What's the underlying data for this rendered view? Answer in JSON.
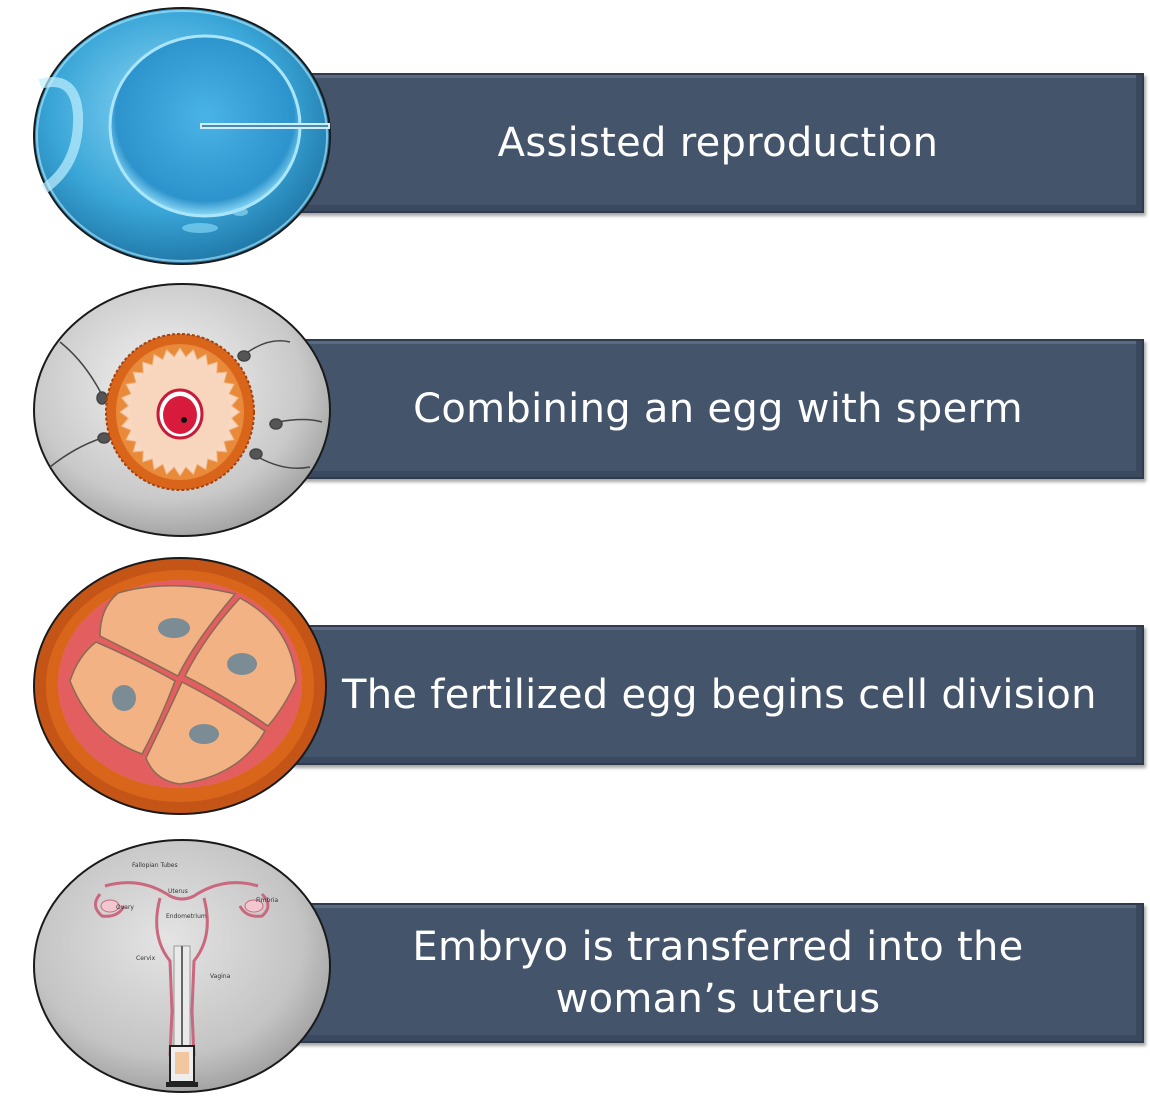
{
  "steps": [
    {
      "label": "Assisted reproduction",
      "icon": "microinjection-icon"
    },
    {
      "label": "Combining an egg with sperm",
      "icon": "egg-sperm-icon"
    },
    {
      "label": "The fertilized egg begins cell division",
      "icon": "cell-division-icon"
    },
    {
      "label": "Embryo is transferred into the\nwoman’s uterus",
      "icon": "uterus-icon"
    }
  ],
  "anatomy_labels": {
    "fallopian": "Fallopian Tubes",
    "uterus": "Uterus",
    "ovary": "Ovary",
    "endometrium": "Endometrium",
    "fimbria": "Fimbria",
    "cervix": "Cervix",
    "vagina": "Vagina"
  },
  "colors": {
    "banner": "#44546b",
    "egg_blue": "#3aa6d8",
    "zona_orange": "#d9651a",
    "cell_peach": "#f2b283",
    "nucleus_red": "#d81b3c"
  }
}
